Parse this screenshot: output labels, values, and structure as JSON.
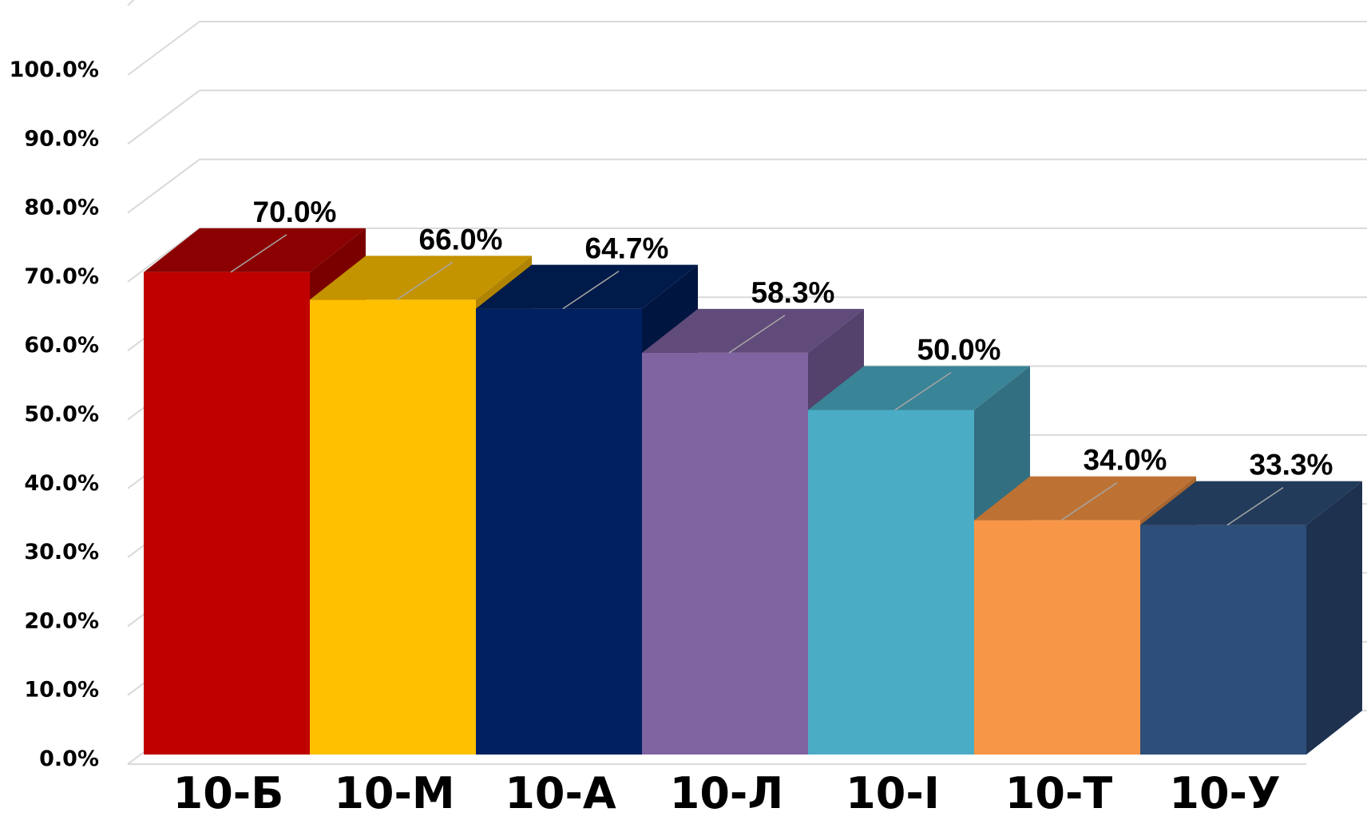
{
  "chart_data": {
    "type": "bar",
    "style": "3d",
    "title": "",
    "xlabel": "",
    "ylabel": "",
    "ylim": [
      0,
      100
    ],
    "grid": true,
    "legend": "none",
    "categories": [
      "10-Б",
      "10-М",
      "10-А",
      "10-Л",
      "10-І",
      "10-Т",
      "10-У"
    ],
    "values": [
      70.0,
      66.0,
      64.7,
      58.3,
      50.0,
      34.0,
      33.3
    ],
    "data_labels": [
      "70.0%",
      "66.0%",
      "64.7%",
      "58.3%",
      "50.0%",
      "34.0%",
      "33.3%"
    ],
    "y_ticks": [
      "0.0%",
      "10.0%",
      "20.0%",
      "30.0%",
      "40.0%",
      "50.0%",
      "60.0%",
      "70.0%",
      "80.0%",
      "90.0%",
      "100.0%"
    ],
    "colors": [
      {
        "front": "#c00000",
        "top": "#8b0000",
        "side": "#7a0000"
      },
      {
        "front": "#ffc000",
        "top": "#c49300",
        "side": "#b08400"
      },
      {
        "front": "#002060",
        "top": "#001a4a",
        "side": "#001540"
      },
      {
        "front": "#8064a2",
        "top": "#614b7b",
        "side": "#54416c"
      },
      {
        "front": "#4bacc6",
        "top": "#3a8497",
        "side": "#326f80"
      },
      {
        "front": "#f79646",
        "top": "#bd7234",
        "side": "#a9652d"
      },
      {
        "front": "#2d4e78",
        "top": "#223b5b",
        "side": "#1e3250"
      }
    ]
  }
}
